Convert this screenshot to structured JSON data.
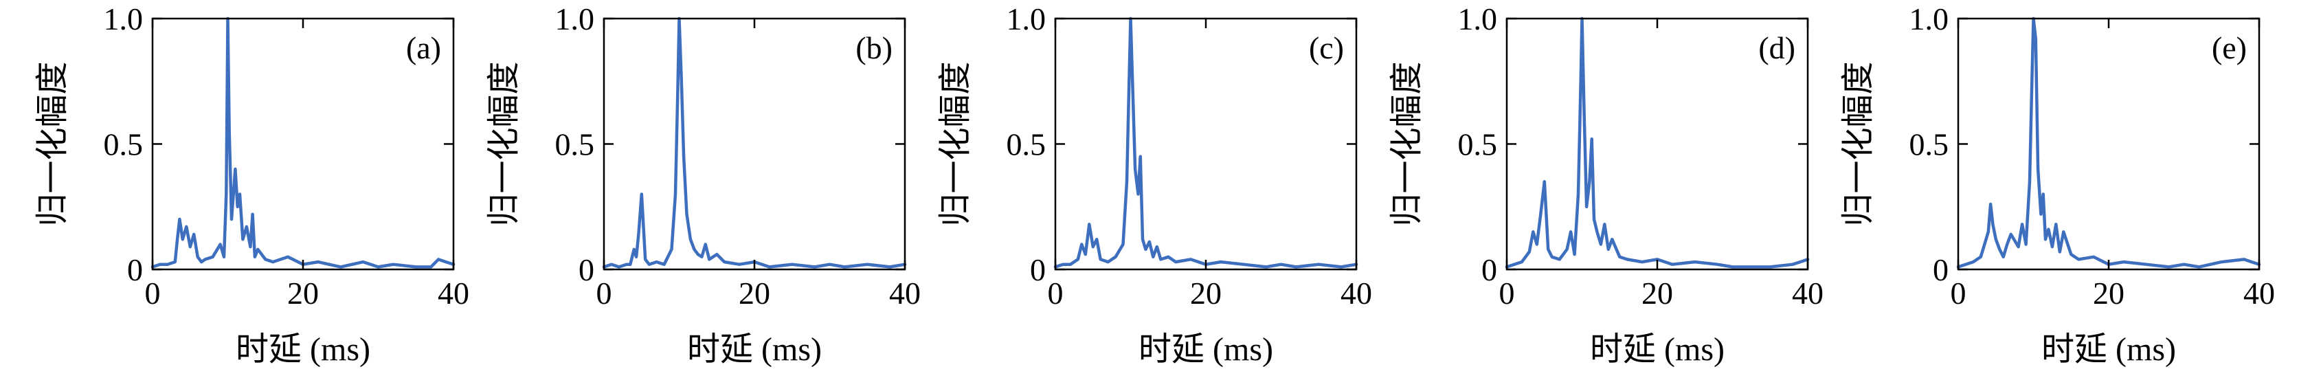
{
  "chart_data": [
    {
      "type": "line",
      "panel_label": "(a)",
      "xlabel": "时延 (ms)",
      "ylabel": "归一化幅度",
      "xlim": [
        0,
        40
      ],
      "ylim": [
        0,
        1.0
      ],
      "xticks": [
        0,
        20,
        40
      ],
      "yticks": [
        0,
        0.5,
        1.0
      ],
      "ytick_labels": [
        "0",
        "0.5",
        "1.0"
      ],
      "line_color": "#3e6fbf",
      "series": [
        {
          "x": [
            0,
            1,
            2,
            3,
            3.3,
            3.6,
            4,
            4.5,
            5,
            5.5,
            6,
            6.5,
            7,
            8,
            9,
            9.5,
            9.8,
            10,
            10.2,
            10.5,
            11,
            11.3,
            11.6,
            12,
            12.5,
            13,
            13.3,
            13.6,
            14,
            15,
            16,
            18,
            20,
            22,
            25,
            28,
            30,
            32,
            35,
            37,
            38,
            39,
            40
          ],
          "y": [
            0.01,
            0.02,
            0.02,
            0.03,
            0.12,
            0.2,
            0.12,
            0.17,
            0.09,
            0.14,
            0.05,
            0.03,
            0.04,
            0.05,
            0.1,
            0.05,
            0.3,
            1.0,
            0.55,
            0.2,
            0.4,
            0.25,
            0.3,
            0.12,
            0.17,
            0.09,
            0.22,
            0.05,
            0.08,
            0.04,
            0.03,
            0.05,
            0.02,
            0.03,
            0.01,
            0.03,
            0.01,
            0.02,
            0.01,
            0.01,
            0.04,
            0.03,
            0.02
          ]
        }
      ]
    },
    {
      "type": "line",
      "panel_label": "(b)",
      "xlabel": "时延 (ms)",
      "ylabel": "归一化幅度",
      "xlim": [
        0,
        40
      ],
      "ylim": [
        0,
        1.0
      ],
      "xticks": [
        0,
        20,
        40
      ],
      "yticks": [
        0,
        0.5,
        1.0
      ],
      "ytick_labels": [
        "0",
        "0.5",
        "1.0"
      ],
      "line_color": "#3e6fbf",
      "series": [
        {
          "x": [
            0,
            1,
            2,
            3,
            3.5,
            4,
            4.3,
            4.6,
            5,
            5.5,
            6,
            7,
            8,
            9,
            9.5,
            9.8,
            10,
            10.3,
            10.6,
            11,
            11.5,
            12,
            12.5,
            13,
            13.5,
            14,
            15,
            16,
            18,
            20,
            22,
            25,
            28,
            30,
            32,
            35,
            38,
            40
          ],
          "y": [
            0.01,
            0.02,
            0.01,
            0.02,
            0.02,
            0.08,
            0.05,
            0.14,
            0.3,
            0.04,
            0.02,
            0.03,
            0.02,
            0.08,
            0.3,
            0.7,
            1.0,
            0.75,
            0.45,
            0.22,
            0.12,
            0.08,
            0.06,
            0.05,
            0.1,
            0.04,
            0.06,
            0.03,
            0.02,
            0.03,
            0.01,
            0.02,
            0.01,
            0.02,
            0.01,
            0.02,
            0.01,
            0.02
          ]
        }
      ]
    },
    {
      "type": "line",
      "panel_label": "(c)",
      "xlabel": "时延 (ms)",
      "ylabel": "归一化幅度",
      "xlim": [
        0,
        40
      ],
      "ylim": [
        0,
        1.0
      ],
      "xticks": [
        0,
        20,
        40
      ],
      "yticks": [
        0,
        0.5,
        1.0
      ],
      "ytick_labels": [
        "0",
        "0.5",
        "1.0"
      ],
      "line_color": "#3e6fbf",
      "series": [
        {
          "x": [
            0,
            1,
            2,
            3,
            3.5,
            4,
            4.5,
            5,
            5.5,
            6,
            7,
            8,
            9,
            9.5,
            9.8,
            10,
            10.3,
            10.6,
            11,
            11.3,
            11.6,
            12,
            12.5,
            13,
            13.5,
            14,
            15,
            16,
            18,
            20,
            22,
            25,
            28,
            30,
            32,
            35,
            38,
            40
          ],
          "y": [
            0.01,
            0.02,
            0.02,
            0.04,
            0.1,
            0.06,
            0.18,
            0.09,
            0.12,
            0.04,
            0.03,
            0.05,
            0.1,
            0.35,
            0.75,
            1.0,
            0.7,
            0.4,
            0.3,
            0.45,
            0.12,
            0.08,
            0.11,
            0.05,
            0.09,
            0.04,
            0.05,
            0.03,
            0.04,
            0.02,
            0.03,
            0.02,
            0.01,
            0.02,
            0.01,
            0.02,
            0.01,
            0.02
          ]
        }
      ]
    },
    {
      "type": "line",
      "panel_label": "(d)",
      "xlabel": "时延 (ms)",
      "ylabel": "归一化幅度",
      "xlim": [
        0,
        40
      ],
      "ylim": [
        0,
        1.0
      ],
      "xticks": [
        0,
        20,
        40
      ],
      "yticks": [
        0,
        0.5,
        1.0
      ],
      "ytick_labels": [
        "0",
        "0.5",
        "1.0"
      ],
      "line_color": "#3e6fbf",
      "series": [
        {
          "x": [
            0,
            1,
            2,
            3,
            3.5,
            4,
            4.5,
            5,
            5.5,
            6,
            7,
            8,
            8.5,
            9,
            9.5,
            9.8,
            10,
            10.3,
            10.6,
            11,
            11.3,
            11.6,
            12,
            12.5,
            13,
            13.5,
            14,
            15,
            16,
            18,
            20,
            22,
            25,
            28,
            30,
            35,
            38,
            39,
            40
          ],
          "y": [
            0.01,
            0.02,
            0.03,
            0.07,
            0.15,
            0.1,
            0.22,
            0.35,
            0.08,
            0.05,
            0.04,
            0.08,
            0.15,
            0.06,
            0.3,
            0.7,
            1.0,
            0.6,
            0.25,
            0.35,
            0.52,
            0.2,
            0.15,
            0.1,
            0.18,
            0.08,
            0.12,
            0.05,
            0.04,
            0.03,
            0.04,
            0.02,
            0.03,
            0.02,
            0.01,
            0.01,
            0.02,
            0.03,
            0.04
          ]
        }
      ]
    },
    {
      "type": "line",
      "panel_label": "(e)",
      "xlabel": "时延 (ms)",
      "ylabel": "归一化幅度",
      "xlim": [
        0,
        40
      ],
      "ylim": [
        0,
        1.0
      ],
      "xticks": [
        0,
        20,
        40
      ],
      "yticks": [
        0,
        0.5,
        1.0
      ],
      "ytick_labels": [
        "0",
        "0.5",
        "1.0"
      ],
      "line_color": "#3e6fbf",
      "series": [
        {
          "x": [
            0,
            1,
            2,
            3,
            3.5,
            4,
            4.3,
            4.6,
            5,
            5.5,
            6,
            6.5,
            7,
            8,
            8.5,
            9,
            9.5,
            9.8,
            10,
            10.3,
            10.6,
            11,
            11.3,
            11.6,
            12,
            12.5,
            13,
            13.5,
            14,
            15,
            16,
            18,
            20,
            22,
            25,
            28,
            30,
            32,
            35,
            38,
            39,
            40
          ],
          "y": [
            0.01,
            0.02,
            0.03,
            0.05,
            0.1,
            0.15,
            0.26,
            0.18,
            0.12,
            0.08,
            0.05,
            0.1,
            0.14,
            0.09,
            0.18,
            0.1,
            0.35,
            0.75,
            1.0,
            0.92,
            0.4,
            0.22,
            0.3,
            0.12,
            0.16,
            0.09,
            0.18,
            0.07,
            0.15,
            0.06,
            0.04,
            0.05,
            0.02,
            0.03,
            0.02,
            0.01,
            0.02,
            0.01,
            0.03,
            0.04,
            0.03,
            0.02
          ]
        }
      ]
    }
  ]
}
